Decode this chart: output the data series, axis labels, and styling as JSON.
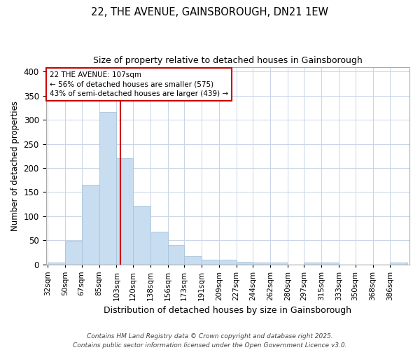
{
  "title_line1": "22, THE AVENUE, GAINSBOROUGH, DN21 1EW",
  "title_line2": "Size of property relative to detached houses in Gainsborough",
  "xlabel": "Distribution of detached houses by size in Gainsborough",
  "ylabel": "Number of detached properties",
  "bar_labels": [
    "32sqm",
    "50sqm",
    "67sqm",
    "85sqm",
    "103sqm",
    "120sqm",
    "138sqm",
    "156sqm",
    "173sqm",
    "191sqm",
    "209sqm",
    "227sqm",
    "244sqm",
    "262sqm",
    "280sqm",
    "297sqm",
    "315sqm",
    "333sqm",
    "350sqm",
    "368sqm",
    "386sqm"
  ],
  "bar_values": [
    4,
    49,
    165,
    317,
    220,
    121,
    67,
    40,
    17,
    9,
    9,
    5,
    3,
    3,
    0,
    3,
    3,
    0,
    0,
    0,
    3
  ],
  "bar_color": "#c8ddf0",
  "bar_edgecolor": "#a8c4dc",
  "redline_index": 5,
  "annotation_text": "22 THE AVENUE: 107sqm\n← 56% of detached houses are smaller (575)\n43% of semi-detached houses are larger (439) →",
  "annotation_box_color": "#ffffff",
  "annotation_box_edgecolor": "#cc0000",
  "vline_color": "#cc0000",
  "grid_color": "#c8d4e8",
  "bg_color": "#ffffff",
  "footer_text": "Contains HM Land Registry data © Crown copyright and database right 2025.\nContains public sector information licensed under the Open Government Licence v3.0.",
  "ylim": [
    0,
    410
  ],
  "yticks": [
    0,
    50,
    100,
    150,
    200,
    250,
    300,
    350,
    400
  ],
  "bin_left_edges": [
    32,
    50,
    67,
    85,
    103,
    120,
    138,
    156,
    173,
    191,
    209,
    227,
    244,
    262,
    280,
    297,
    315,
    333,
    350,
    368,
    386
  ],
  "bin_widths": [
    18,
    17,
    18,
    18,
    17,
    18,
    18,
    17,
    18,
    18,
    18,
    17,
    18,
    18,
    17,
    18,
    18,
    17,
    18,
    18,
    18
  ]
}
